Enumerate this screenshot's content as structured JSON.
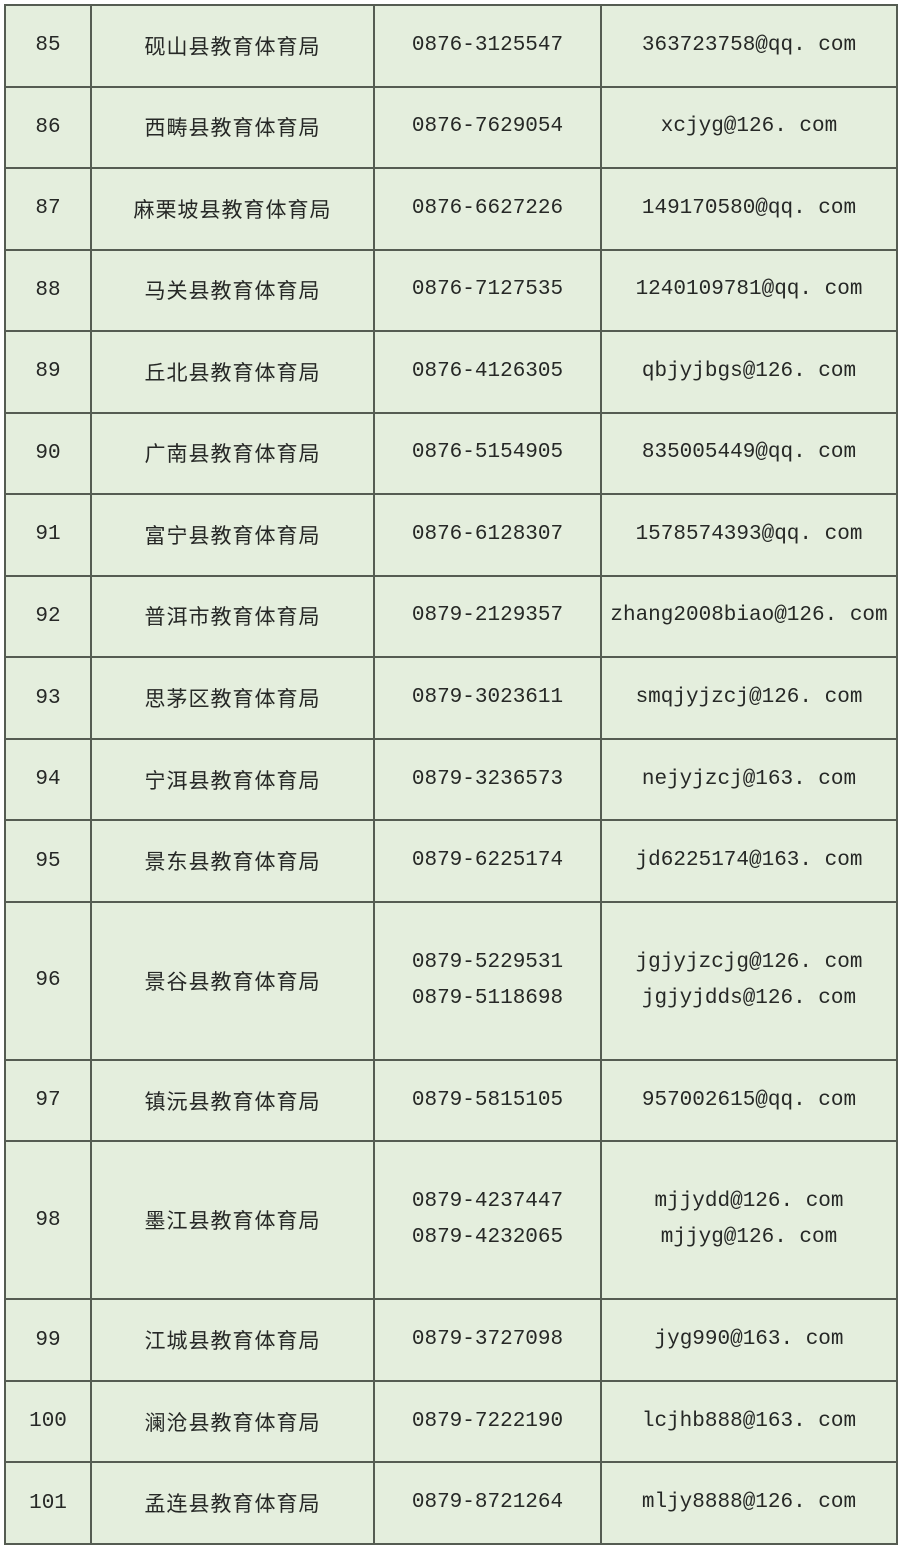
{
  "colors": {
    "page_background": "#ffffff",
    "cell_background": "#e4eedd",
    "grid_line": "#555c52",
    "text": "#262826"
  },
  "table": {
    "columns": [
      "row_number",
      "organization",
      "phone",
      "email"
    ],
    "rows": [
      {
        "seq": "85",
        "org": "砚山县教育体育局",
        "phones": [
          "0876-3125547"
        ],
        "emails": [
          "363723758@qq. com"
        ]
      },
      {
        "seq": "86",
        "org": "西畴县教育体育局",
        "phones": [
          "0876-7629054"
        ],
        "emails": [
          "xcjyg@126. com"
        ]
      },
      {
        "seq": "87",
        "org": "麻栗坡县教育体育局",
        "phones": [
          "0876-6627226"
        ],
        "emails": [
          "149170580@qq. com"
        ]
      },
      {
        "seq": "88",
        "org": "马关县教育体育局",
        "phones": [
          "0876-7127535"
        ],
        "emails": [
          "1240109781@qq. com"
        ]
      },
      {
        "seq": "89",
        "org": "丘北县教育体育局",
        "phones": [
          "0876-4126305"
        ],
        "emails": [
          "qbjyjbgs@126. com"
        ]
      },
      {
        "seq": "90",
        "org": "广南县教育体育局",
        "phones": [
          "0876-5154905"
        ],
        "emails": [
          "835005449@qq. com"
        ]
      },
      {
        "seq": "91",
        "org": "富宁县教育体育局",
        "phones": [
          "0876-6128307"
        ],
        "emails": [
          "1578574393@qq. com"
        ]
      },
      {
        "seq": "92",
        "org": "普洱市教育体育局",
        "phones": [
          "0879-2129357"
        ],
        "emails": [
          "zhang2008biao@126. com"
        ]
      },
      {
        "seq": "93",
        "org": "思茅区教育体育局",
        "phones": [
          "0879-3023611"
        ],
        "emails": [
          "smqjyjzcj@126. com"
        ]
      },
      {
        "seq": "94",
        "org": "宁洱县教育体育局",
        "phones": [
          "0879-3236573"
        ],
        "emails": [
          "nejyjzcj@163. com"
        ]
      },
      {
        "seq": "95",
        "org": "景东县教育体育局",
        "phones": [
          "0879-6225174"
        ],
        "emails": [
          "jd6225174@163. com"
        ]
      },
      {
        "seq": "96",
        "org": "景谷县教育体育局",
        "phones": [
          "0879-5229531",
          "0879-5118698"
        ],
        "emails": [
          "jgjyjzcjg@126. com",
          "jgjyjdds@126. com"
        ]
      },
      {
        "seq": "97",
        "org": "镇沅县教育体育局",
        "phones": [
          "0879-5815105"
        ],
        "emails": [
          "957002615@qq. com"
        ]
      },
      {
        "seq": "98",
        "org": "墨江县教育体育局",
        "phones": [
          "0879-4237447",
          "0879-4232065"
        ],
        "emails": [
          "mjjydd@126. com",
          "mjjyg@126. com"
        ]
      },
      {
        "seq": "99",
        "org": "江城县教育体育局",
        "phones": [
          "0879-3727098"
        ],
        "emails": [
          "jyg990@163. com"
        ]
      },
      {
        "seq": "100",
        "org": "澜沧县教育体育局",
        "phones": [
          "0879-7222190"
        ],
        "emails": [
          "lcjhb888@163. com"
        ]
      },
      {
        "seq": "101",
        "org": "孟连县教育体育局",
        "phones": [
          "0879-8721264"
        ],
        "emails": [
          "mljy8888@126. com"
        ]
      }
    ]
  }
}
